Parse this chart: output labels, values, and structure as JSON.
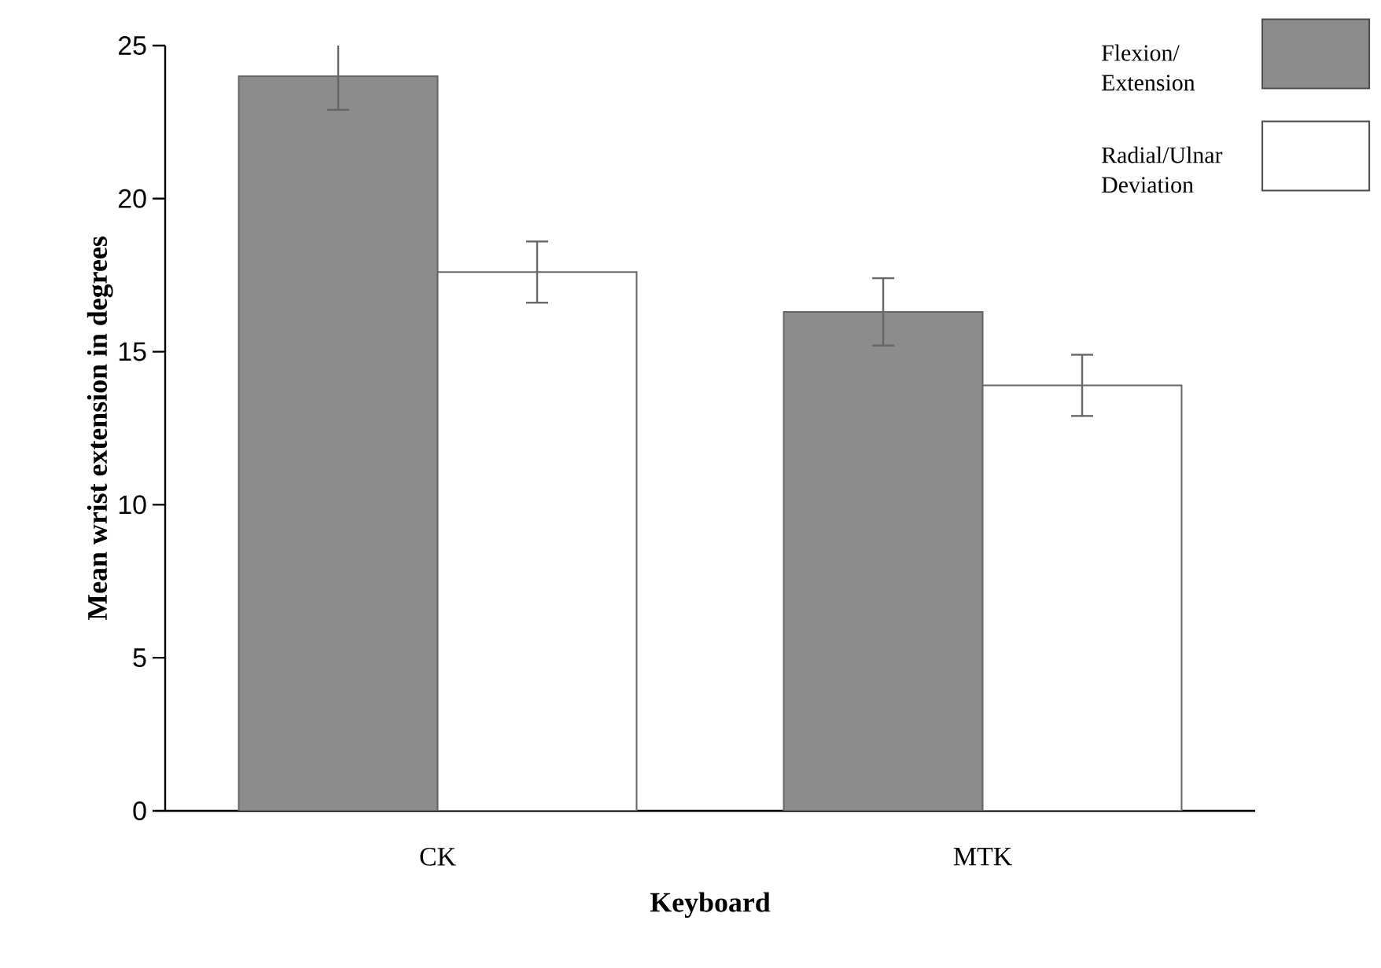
{
  "chart_data": {
    "type": "bar",
    "xlabel": "Keyboard",
    "ylabel": "Mean wrist extension in degrees",
    "categories": [
      "CK",
      "MTK"
    ],
    "series": [
      {
        "name": "Flexion/ Extension",
        "color": "#8c8c8c",
        "values": [
          24.0,
          16.3
        ],
        "errors": [
          1.1,
          1.1
        ]
      },
      {
        "name": "Radial/Ulnar Deviation",
        "color": "#ffffff",
        "values": [
          17.6,
          13.9
        ],
        "errors": [
          1.0,
          1.0
        ]
      }
    ],
    "ylim": [
      0,
      25
    ],
    "yticks": [
      0,
      5,
      10,
      15,
      20,
      25
    ],
    "grid": false,
    "legend": "top right"
  }
}
